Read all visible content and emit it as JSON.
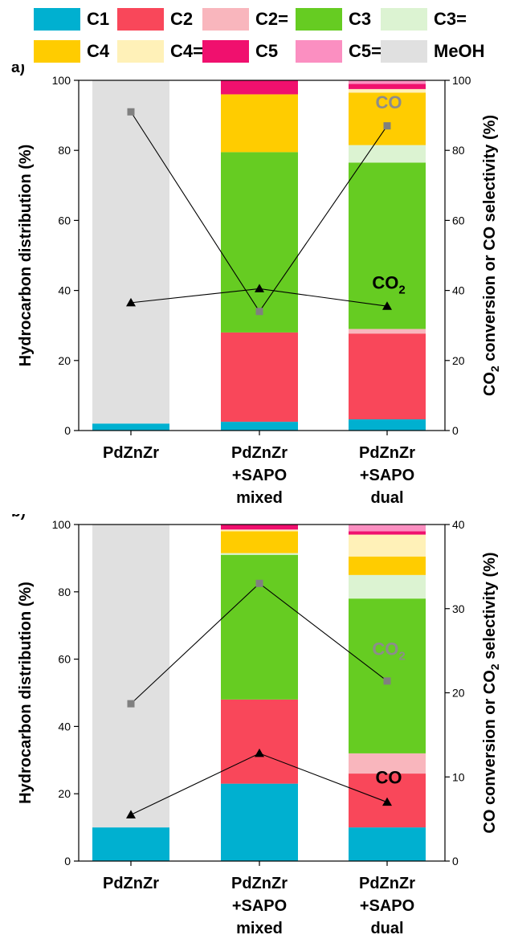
{
  "legend": [
    {
      "key": "C1",
      "label": "C1",
      "color": "#00b0d0"
    },
    {
      "key": "C2",
      "label": "C2",
      "color": "#f9475a"
    },
    {
      "key": "C2=",
      "label": "C2=",
      "color": "#f9b6bd"
    },
    {
      "key": "C3",
      "label": "C3",
      "color": "#66cc22"
    },
    {
      "key": "C3=",
      "label": "C3=",
      "color": "#dcf3d2"
    },
    {
      "key": "C4",
      "label": "C4",
      "color": "#ffcc00"
    },
    {
      "key": "C4=",
      "label": "C4=",
      "color": "#fff1b8"
    },
    {
      "key": "C5",
      "label": "C5",
      "color": "#f0106e"
    },
    {
      "key": "C5=",
      "label": "C5=",
      "color": "#fb8fc1"
    },
    {
      "key": "MeOH",
      "label": "MeOH",
      "color": "#e0e0e0"
    }
  ],
  "chart_data": [
    {
      "panel": "a)",
      "type": "bar",
      "stacked": true,
      "categories": [
        [
          "PdZnZr"
        ],
        [
          "PdZnZr",
          "+SAPO",
          "mixed"
        ],
        [
          "PdZnZr",
          "+SAPO",
          "dual"
        ]
      ],
      "ylabel": "Hydrocarbon distribution (%)",
      "ylabel_right_parts": [
        {
          "t": "CO"
        },
        {
          "t": "2",
          "sub": true
        },
        {
          "t": " conversion or CO selectivity (%)"
        }
      ],
      "ylim": [
        0,
        100
      ],
      "ylim_right": [
        0,
        100
      ],
      "yticks": [
        0,
        20,
        40,
        60,
        80,
        100
      ],
      "yticks_right": [
        0,
        20,
        40,
        60,
        80,
        100
      ],
      "series": [
        {
          "key": "C1",
          "values": [
            2,
            2.5,
            3.2
          ]
        },
        {
          "key": "C2",
          "values": [
            0,
            25.5,
            24.5
          ]
        },
        {
          "key": "C2=",
          "values": [
            0,
            0,
            1.3
          ]
        },
        {
          "key": "C3",
          "values": [
            0,
            51.5,
            47.5
          ]
        },
        {
          "key": "C3=",
          "values": [
            0,
            0,
            5
          ]
        },
        {
          "key": "C4",
          "values": [
            0,
            16.5,
            15
          ]
        },
        {
          "key": "C4=",
          "values": [
            0,
            0,
            1
          ]
        },
        {
          "key": "C5",
          "values": [
            0,
            4,
            1.5
          ]
        },
        {
          "key": "C5=",
          "values": [
            0,
            0,
            1
          ]
        },
        {
          "key": "MeOH",
          "values": [
            98,
            0,
            0
          ]
        }
      ],
      "lines": [
        {
          "key": "CO",
          "marker": "square",
          "color": "#808080",
          "values": [
            91,
            34,
            87
          ],
          "annotation_parts": [
            {
              "t": "CO"
            }
          ],
          "annotation_color": "#8c8c8c",
          "annotation_at": [
            2,
            92
          ]
        },
        {
          "key": "CO2",
          "marker": "triangle",
          "color": "#000000",
          "values": [
            36.5,
            40.5,
            35.5
          ],
          "annotation_parts": [
            {
              "t": "CO"
            },
            {
              "t": "2",
              "sub": true
            }
          ],
          "annotation_color": "#000000",
          "annotation_at": [
            2,
            40.5
          ]
        }
      ]
    },
    {
      "panel": "b)",
      "type": "bar",
      "stacked": true,
      "categories": [
        [
          "PdZnZr"
        ],
        [
          "PdZnZr",
          "+SAPO",
          "mixed"
        ],
        [
          "PdZnZr",
          "+SAPO",
          "dual"
        ]
      ],
      "ylabel": "Hydrocarbon distribution (%)",
      "ylabel_right_parts": [
        {
          "t": "CO conversion or CO"
        },
        {
          "t": "2",
          "sub": true
        },
        {
          "t": " selectivity (%)"
        }
      ],
      "ylim": [
        0,
        100
      ],
      "ylim_right": [
        0,
        40
      ],
      "yticks": [
        0,
        20,
        40,
        60,
        80,
        100
      ],
      "yticks_right": [
        0,
        10,
        20,
        30,
        40
      ],
      "series": [
        {
          "key": "C1",
          "values": [
            10,
            23,
            10
          ]
        },
        {
          "key": "C2",
          "values": [
            0,
            25,
            16
          ]
        },
        {
          "key": "C2=",
          "values": [
            0,
            0,
            6
          ]
        },
        {
          "key": "C3",
          "values": [
            0,
            43,
            46
          ]
        },
        {
          "key": "C3=",
          "values": [
            0,
            0.5,
            7
          ]
        },
        {
          "key": "C4",
          "values": [
            0,
            6.5,
            5.5
          ]
        },
        {
          "key": "C4=",
          "values": [
            0,
            0.5,
            6.5
          ]
        },
        {
          "key": "C5",
          "values": [
            0,
            1.5,
            1
          ]
        },
        {
          "key": "C5=",
          "values": [
            0,
            0,
            2
          ]
        },
        {
          "key": "MeOH",
          "values": [
            90,
            0,
            0
          ]
        }
      ],
      "lines": [
        {
          "key": "CO2",
          "marker": "square",
          "color": "#808080",
          "values": [
            18.7,
            33,
            21.4
          ],
          "annotation_parts": [
            {
              "t": "CO"
            },
            {
              "t": "2",
              "sub": true
            }
          ],
          "annotation_color": "#8c8c8c",
          "annotation_at": [
            2,
            24.5
          ]
        },
        {
          "key": "CO",
          "marker": "triangle",
          "color": "#000000",
          "values": [
            5.5,
            12.8,
            7
          ],
          "annotation_parts": [
            {
              "t": "CO"
            }
          ],
          "annotation_color": "#000000",
          "annotation_at": [
            2,
            9.2
          ]
        }
      ]
    }
  ]
}
